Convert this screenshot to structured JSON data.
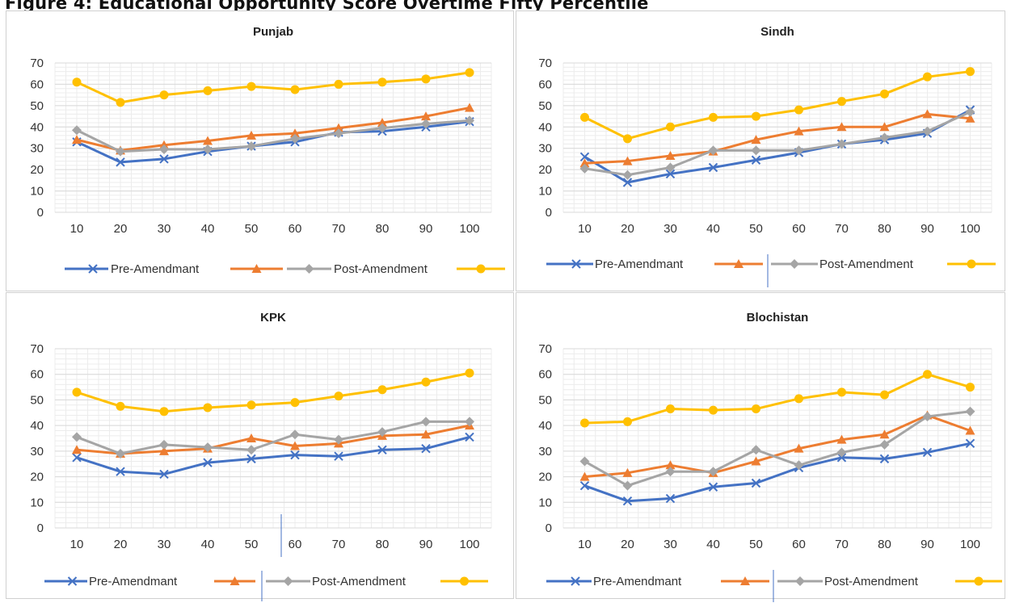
{
  "page": {
    "heading": "Figure 4: Educational Opportunity Score Overtime Fifty Percentile"
  },
  "colors": {
    "pre_percentile": "#4472C4",
    "pre_orange": "#ED7D31",
    "post_gray": "#A5A5A5",
    "post_gold": "#FFC000",
    "grid": "#d9d9d9"
  },
  "legend": {
    "pre_label": "Pre-Amendmant",
    "post_label": "Post-Amendment"
  },
  "chart_data": [
    {
      "type": "line",
      "title": "Punjab",
      "categories": [
        "10",
        "20",
        "30",
        "40",
        "50",
        "60",
        "70",
        "80",
        "90",
        "100"
      ],
      "ylim": [
        0,
        70
      ],
      "yticks": [
        "0",
        "10",
        "20",
        "30",
        "40",
        "50",
        "60",
        "70"
      ],
      "grid": true,
      "legend_position": "bottom",
      "series": [
        {
          "values": [
            33,
            23.5,
            25,
            28.5,
            31,
            33,
            37.5,
            38,
            40,
            42.5
          ]
        },
        {
          "values": [
            34,
            29,
            31.5,
            33.5,
            36,
            37,
            39.5,
            42,
            45,
            49
          ]
        },
        {
          "values": [
            38.5,
            28.5,
            29.5,
            29.5,
            31,
            34.5,
            37,
            39.5,
            41.5,
            43
          ]
        },
        {
          "values": [
            61,
            51.5,
            55,
            57,
            59,
            57.5,
            60,
            61,
            62.5,
            65.5
          ]
        }
      ]
    },
    {
      "type": "line",
      "title": "Sindh",
      "categories": [
        "10",
        "20",
        "30",
        "40",
        "50",
        "60",
        "70",
        "80",
        "90",
        "100"
      ],
      "ylim": [
        0,
        70
      ],
      "yticks": [
        "0",
        "10",
        "20",
        "30",
        "40",
        "50",
        "60",
        "70"
      ],
      "grid": true,
      "legend_position": "bottom",
      "series": [
        {
          "values": [
            26,
            14,
            18,
            21,
            24.5,
            28,
            32,
            34,
            37,
            48
          ]
        },
        {
          "values": [
            23,
            24,
            26.5,
            28.5,
            34,
            38,
            40,
            40,
            46,
            44
          ]
        },
        {
          "values": [
            20.5,
            17.5,
            21,
            29,
            29,
            29,
            32,
            35,
            38,
            47
          ]
        },
        {
          "values": [
            44.5,
            34.5,
            40,
            44.5,
            45,
            48,
            52,
            55.5,
            63.5,
            66
          ]
        }
      ]
    },
    {
      "type": "line",
      "title": "KPK",
      "categories": [
        "10",
        "20",
        "30",
        "40",
        "50",
        "60",
        "70",
        "80",
        "90",
        "100"
      ],
      "ylim": [
        0,
        70
      ],
      "yticks": [
        "0",
        "10",
        "20",
        "30",
        "40",
        "50",
        "60",
        "70"
      ],
      "grid": true,
      "legend_position": "bottom",
      "series": [
        {
          "values": [
            27.5,
            22,
            21,
            25.5,
            27,
            28.5,
            28,
            30.5,
            31,
            35.5
          ]
        },
        {
          "values": [
            30.5,
            29,
            30,
            31,
            35,
            32,
            33,
            36,
            36.5,
            40
          ]
        },
        {
          "values": [
            35.5,
            29,
            32.5,
            31.5,
            30.5,
            36.5,
            34.5,
            37.5,
            41.5,
            41.5
          ]
        },
        {
          "values": [
            53,
            47.5,
            45.5,
            47,
            48,
            49,
            51.5,
            54,
            57,
            60.5
          ]
        }
      ]
    },
    {
      "type": "line",
      "title": "Blochistan",
      "categories": [
        "10",
        "20",
        "30",
        "40",
        "50",
        "60",
        "70",
        "80",
        "90",
        "100"
      ],
      "ylim": [
        0,
        70
      ],
      "yticks": [
        "0",
        "10",
        "20",
        "30",
        "40",
        "50",
        "60",
        "70"
      ],
      "grid": true,
      "legend_position": "bottom",
      "series": [
        {
          "values": [
            16.5,
            10.5,
            11.5,
            16,
            17.5,
            23.5,
            27.5,
            27,
            29.5,
            33
          ]
        },
        {
          "values": [
            20,
            21.5,
            24.5,
            21.5,
            26,
            31,
            34.5,
            36.5,
            44,
            38
          ]
        },
        {
          "values": [
            26,
            16.5,
            22,
            22,
            30.5,
            24.5,
            29.5,
            32.5,
            43.5,
            45.5
          ]
        },
        {
          "values": [
            41,
            41.5,
            46.5,
            46,
            46.5,
            50.5,
            53,
            52,
            60,
            55
          ]
        }
      ]
    }
  ]
}
